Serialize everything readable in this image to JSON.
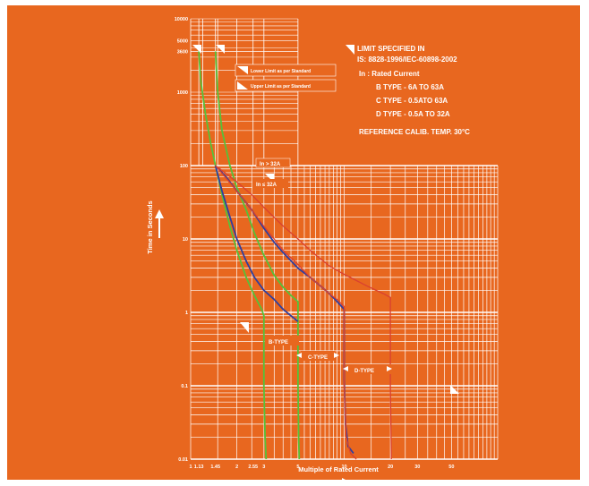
{
  "chart_data": {
    "type": "line",
    "title": "",
    "xlabel": "Multiple of Rated Current",
    "ylabel": "Time in Seconds",
    "x_scale": "log",
    "y_scale": "log",
    "xlim": [
      1,
      100
    ],
    "ylim": [
      0.01,
      10000
    ],
    "x_tick_labels": [
      "1",
      "1.13",
      "1.45",
      "2",
      "2.55",
      "3",
      "5",
      "10",
      "20",
      "30",
      "50"
    ],
    "y_tick_labels": [
      "10000",
      "5000",
      "3600",
      "1000",
      "100",
      "10",
      "1",
      "0.1",
      "0.01"
    ],
    "grid": true,
    "legend": [
      {
        "label": "Lower Limit as per Standard",
        "placement": "top-left"
      },
      {
        "label": "Upper Limit as per Standard",
        "placement": "top-left"
      }
    ],
    "annotations": {
      "spec_lines": [
        "LIMIT SPECIFIED IN",
        "IS: 8828-1996/IEC-60898-2002",
        "In : Rated Current",
        "B TYPE - 6A TO 63A",
        "C TYPE - 0.5ATO 63A",
        "D TYPE - 0.5A TO 32A",
        "REFERENCE CALIB. TEMP. 30°C"
      ],
      "in_gt": "In > 32A",
      "in_le": "In ≤ 32A",
      "b_type": "B-TYPE",
      "c_type": "C-TYPE",
      "d_type": "D-TYPE"
    },
    "series": [
      {
        "color": "#56c13a",
        "x": [
          1.13,
          1.16,
          1.25,
          1.35,
          1.45,
          1.6,
          1.8,
          2,
          2.3,
          2.6,
          2.9,
          3,
          3,
          3.05,
          3.1
        ],
        "y": [
          3600,
          1500,
          500,
          200,
          100,
          40,
          15,
          7,
          3,
          1.7,
          1.1,
          0.9,
          0.1,
          0.02,
          0.01
        ]
      },
      {
        "color": "#56c13a",
        "x": [
          1.45,
          1.5,
          1.6,
          1.8,
          2,
          2.3,
          2.6,
          3,
          3.5,
          4,
          4.5,
          5,
          5,
          5.05,
          5.1
        ],
        "y": [
          3600,
          1000,
          300,
          100,
          50,
          25,
          12,
          6,
          3.2,
          2.2,
          1.7,
          1.4,
          0.1,
          0.02,
          0.01
        ]
      },
      {
        "color": "#2f3fa0",
        "x": [
          1.45,
          1.6,
          1.8,
          2,
          2.3,
          2.6,
          3,
          3.5,
          4,
          4.5,
          5
        ],
        "y": [
          100,
          45,
          20,
          10,
          5,
          3,
          2,
          1.5,
          1.1,
          0.9,
          0.75
        ]
      },
      {
        "color": "#2f3fa0",
        "x": [
          1.45,
          1.7,
          2,
          2.5,
          3,
          3.5,
          4,
          5,
          6,
          7,
          8,
          9,
          10,
          10,
          10.2,
          10.6,
          11.5
        ],
        "y": [
          100,
          70,
          45,
          25,
          14,
          9,
          6.5,
          4,
          3,
          2.3,
          1.8,
          1.4,
          1.1,
          0.12,
          0.03,
          0.015,
          0.012
        ]
      },
      {
        "color": "#d94130",
        "x": [
          1.45,
          2,
          2.5,
          3,
          3.5,
          4,
          5,
          6,
          7,
          8,
          9,
          10,
          10,
          10.3,
          11,
          12
        ],
        "y": [
          100,
          45,
          25,
          15,
          10,
          7,
          4.5,
          3,
          2.3,
          1.8,
          1.5,
          1.2,
          0.1,
          0.02,
          0.012,
          0.01
        ]
      },
      {
        "color": "#d94130",
        "x": [
          1.45,
          2,
          2.5,
          3,
          4,
          5,
          6,
          8,
          10,
          14,
          18,
          20,
          20,
          20.2,
          20.3
        ],
        "y": [
          100,
          60,
          40,
          27,
          15,
          10,
          7,
          4.3,
          3.3,
          2.3,
          1.8,
          1.6,
          0.1,
          0.02,
          0.01
        ]
      }
    ]
  }
}
